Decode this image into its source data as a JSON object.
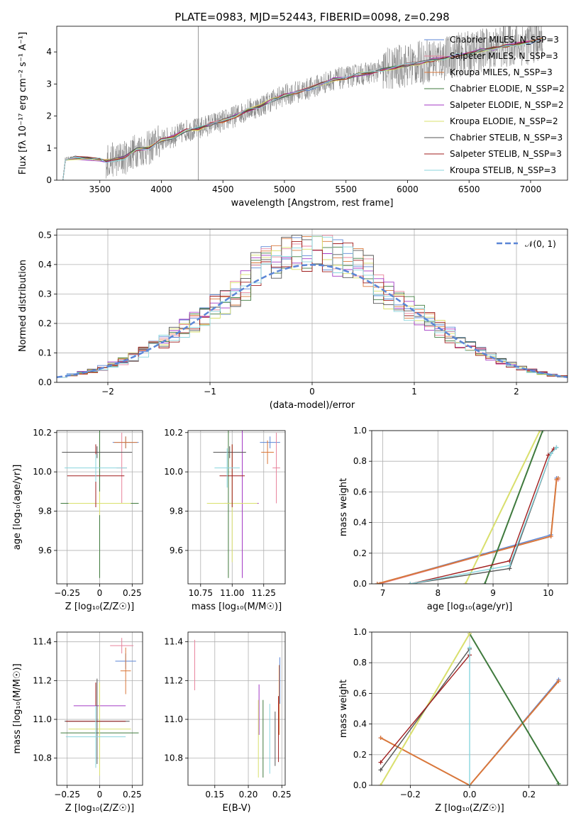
{
  "title": "PLATE=0983, MJD=52443, FIBERID=0098, z=0.298",
  "colors": [
    "#5b86d6",
    "#e8839c",
    "#d9773a",
    "#3f7a3d",
    "#a33ac5",
    "#d9e06c",
    "#555555",
    "#a01e1e",
    "#88d5de"
  ],
  "chart_data": [
    {
      "id": "spectrum",
      "type": "line",
      "xlabel": "wavelength [Angstrom, rest frame]",
      "ylabel": "Flux [fλ 10⁻¹⁷ erg cm⁻² s⁻¹ A⁻¹]",
      "xlim": [
        3150,
        7300
      ],
      "ylim": [
        0,
        4.8
      ],
      "xticks": [
        3500,
        4000,
        4500,
        5000,
        5500,
        6000,
        6500,
        7000
      ],
      "yticks": [
        0,
        1,
        2,
        3,
        4
      ],
      "data_x": [
        3200,
        3220,
        3300,
        3400,
        3500,
        3550,
        3700,
        3800,
        3900,
        4000,
        4100,
        4200,
        4300,
        4400,
        4500,
        4600,
        4700,
        4800,
        4900,
        5000,
        5100,
        5200,
        5300,
        5400,
        5500,
        5600,
        5700,
        5800,
        5900,
        6000,
        6100,
        6200,
        6300,
        6400,
        6500,
        6600,
        6700,
        6800,
        6900,
        7000,
        7100
      ],
      "model_y": [
        0,
        0.68,
        0.7,
        0.68,
        0.65,
        0.6,
        0.7,
        0.95,
        1.0,
        1.25,
        1.35,
        1.55,
        1.6,
        1.75,
        1.85,
        2.0,
        2.2,
        2.3,
        2.5,
        2.65,
        2.75,
        2.85,
        3.0,
        3.15,
        3.2,
        3.3,
        3.35,
        3.45,
        3.5,
        3.6,
        3.65,
        3.75,
        3.8,
        3.9,
        3.95,
        4.05,
        4.1,
        4.2,
        4.25,
        4.3,
        4.4
      ],
      "legend": [
        "Chabrier MILES, N_SSP=3",
        "Salpeter MILES, N_SSP=3",
        "Kroupa MILES, N_SSP=3",
        "Chabrier ELODIE, N_SSP=2",
        "Salpeter ELODIE, N_SSP=2",
        "Kroupa ELODIE, N_SSP=2",
        "Chabrier STELIB, N_SSP=3",
        "Salpeter STELIB, N_SSP=3",
        "Kroupa STELIB, N_SSP=3"
      ]
    },
    {
      "id": "residuals",
      "type": "line",
      "xlabel": "(data-model)/error",
      "ylabel": "Normed distribution",
      "xlim": [
        -2.5,
        2.5
      ],
      "ylim": [
        0,
        0.52
      ],
      "xticks": [
        -2,
        -1,
        0,
        1,
        2
      ],
      "yticks": [
        0,
        0.1,
        0.2,
        0.3,
        0.4,
        0.5
      ],
      "gaussian_label": "𝒩(0, 1)",
      "bin_width": 0.1
    },
    {
      "id": "age-vs-z",
      "type": "scatter",
      "xlabel": "Z [log₁₀(Z/Z☉)]",
      "ylabel": "age  [log₁₀(age/yr)]",
      "xlim": [
        -0.33,
        0.33
      ],
      "ylim": [
        9.43,
        10.21
      ],
      "xticks": [
        -0.25,
        0,
        0.25
      ],
      "yticks": [
        9.6,
        9.8,
        10.0,
        10.2
      ],
      "points": [
        {
          "x": 0.2,
          "y": 10.15,
          "xerr": 0.1,
          "yerr": 0.03
        },
        {
          "x": 0.17,
          "y": 10.02,
          "xerr": 0.04,
          "yerr": 0.18
        },
        {
          "x": 0.2,
          "y": 10.15,
          "xerr": 0.09,
          "yerr": 0.03
        },
        {
          "x": 0.0,
          "y": 9.84,
          "xerr": 0.3,
          "yerr": 0.38
        },
        {
          "x": 0.0,
          "y": 9.84,
          "xerr": 0.24,
          "yerr": 0.06
        },
        {
          "x": 0.0,
          "y": 9.84,
          "xerr": 0.24,
          "yerr": 0.06
        },
        {
          "x": -0.02,
          "y": 10.1,
          "xerr": 0.27,
          "yerr": 0.03
        },
        {
          "x": -0.03,
          "y": 9.98,
          "xerr": 0.22,
          "yerr": 0.16
        },
        {
          "x": -0.03,
          "y": 10.02,
          "xerr": 0.24,
          "yerr": 0.07
        }
      ]
    },
    {
      "id": "age-vs-mass",
      "type": "scatter",
      "xlabel": "mass [log₁₀(M/M☉)]",
      "ylabel": "",
      "xlim": [
        10.65,
        11.42
      ],
      "ylim": [
        9.43,
        10.21
      ],
      "xticks": [
        10.75,
        11.0,
        11.25
      ],
      "yticks": [
        9.6,
        9.8,
        10.0,
        10.2
      ],
      "xticklabels": [
        "10.75",
        "11.00",
        "11.25"
      ],
      "points": [
        {
          "x": 11.3,
          "y": 10.15,
          "xerr": 0.08,
          "yerr": 0.03
        },
        {
          "x": 11.35,
          "y": 10.02,
          "xerr": 0.03,
          "yerr": 0.18
        },
        {
          "x": 11.28,
          "y": 10.1,
          "xerr": 0.05,
          "yerr": 0.06
        },
        {
          "x": 10.97,
          "y": 9.84,
          "xerr": 0.03,
          "yerr": 0.38
        },
        {
          "x": 11.08,
          "y": 9.84,
          "xerr": 0.13,
          "yerr": 0.38
        },
        {
          "x": 11.0,
          "y": 9.84,
          "xerr": 0.2,
          "yerr": 0.3
        },
        {
          "x": 10.98,
          "y": 10.1,
          "xerr": 0.13,
          "yerr": 0.03
        },
        {
          "x": 11.0,
          "y": 9.98,
          "xerr": 0.1,
          "yerr": 0.16
        },
        {
          "x": 10.96,
          "y": 10.02,
          "xerr": 0.1,
          "yerr": 0.1
        }
      ]
    },
    {
      "id": "cumulative-age",
      "type": "line",
      "xlabel": "age  [log₁₀(age/yr)]",
      "ylabel": "mass weight",
      "xlim": [
        6.8,
        10.35
      ],
      "ylim": [
        0,
        1.0
      ],
      "xticks": [
        7,
        8,
        9,
        10
      ],
      "yticks": [
        0,
        0.2,
        0.4,
        0.6,
        0.8,
        1.0
      ],
      "series": [
        {
          "x": [
            6.9,
            10.05,
            10.15,
            10.18
          ],
          "y": [
            0,
            0.32,
            0.69,
            0.69
          ]
        },
        {
          "x": [
            6.95,
            10.05,
            10.15,
            10.18
          ],
          "y": [
            0,
            0.31,
            0.68,
            0.68
          ]
        },
        {
          "x": [
            6.9,
            10.05,
            10.15,
            10.18
          ],
          "y": [
            0,
            0.31,
            0.68,
            0.69
          ]
        },
        {
          "x": [
            8.85,
            9.9
          ],
          "y": [
            0,
            1.0
          ]
        },
        {
          "x": [
            8.5,
            9.85
          ],
          "y": [
            0,
            1.0
          ]
        },
        {
          "x": [
            8.5,
            9.85
          ],
          "y": [
            0,
            1.0
          ]
        },
        {
          "x": [
            7.5,
            9.3,
            10.05,
            10.15
          ],
          "y": [
            0,
            0.1,
            0.85,
            0.89
          ]
        },
        {
          "x": [
            7.5,
            9.3,
            10.0,
            10.1
          ],
          "y": [
            0,
            0.15,
            0.84,
            0.88
          ]
        },
        {
          "x": [
            7.5,
            9.3,
            10.05,
            10.15
          ],
          "y": [
            0,
            0.12,
            0.85,
            0.89
          ]
        }
      ]
    },
    {
      "id": "mass-vs-z",
      "type": "scatter",
      "xlabel": "Z [log₁₀(Z/Z☉)]",
      "ylabel": "mass [log₁₀(M/M☉)]",
      "xlim": [
        -0.33,
        0.33
      ],
      "ylim": [
        10.66,
        11.45
      ],
      "xticks": [
        -0.25,
        0,
        0.25
      ],
      "yticks": [
        10.8,
        11.0,
        11.2,
        11.4
      ],
      "points": [
        {
          "x": 0.2,
          "y": 11.3,
          "xerr": 0.08,
          "yerr": 0.04
        },
        {
          "x": 0.17,
          "y": 11.38,
          "xerr": 0.09,
          "yerr": 0.04
        },
        {
          "x": 0.2,
          "y": 11.25,
          "xerr": 0.04,
          "yerr": 0.12
        },
        {
          "x": 0.0,
          "y": 10.93,
          "xerr": 0.3,
          "yerr": 0.1
        },
        {
          "x": 0.0,
          "y": 11.07,
          "xerr": 0.2,
          "yerr": 0.1
        },
        {
          "x": 0.0,
          "y": 10.95,
          "xerr": 0.24,
          "yerr": 0.24
        },
        {
          "x": -0.02,
          "y": 10.99,
          "xerr": 0.25,
          "yerr": 0.22
        },
        {
          "x": -0.03,
          "y": 10.99,
          "xerr": 0.23,
          "yerr": 0.2
        },
        {
          "x": -0.03,
          "y": 10.91,
          "xerr": 0.23,
          "yerr": 0.16
        }
      ]
    },
    {
      "id": "mass-vs-ebv",
      "type": "scatter",
      "xlabel": "E(B-V)",
      "ylabel": "",
      "xlim": [
        0.11,
        0.255
      ],
      "ylim": [
        10.66,
        11.45
      ],
      "xticks": [
        0.15,
        0.2,
        0.25
      ],
      "yticks": [
        10.8,
        11.0,
        11.2,
        11.4
      ],
      "xticklabels": [
        "0.15",
        "0.20",
        "0.25"
      ],
      "points": [
        {
          "x": 0.247,
          "y": 11.2,
          "xerr": 0,
          "yerr": 0.12
        },
        {
          "x": 0.12,
          "y": 11.28,
          "xerr": 0,
          "yerr": 0.13
        },
        {
          "x": 0.246,
          "y": 11.1,
          "xerr": 0,
          "yerr": 0.18
        },
        {
          "x": 0.222,
          "y": 10.9,
          "xerr": 0,
          "yerr": 0.2
        },
        {
          "x": 0.216,
          "y": 11.05,
          "xerr": 0,
          "yerr": 0.13
        },
        {
          "x": 0.215,
          "y": 10.9,
          "xerr": 0,
          "yerr": 0.2
        },
        {
          "x": 0.24,
          "y": 10.9,
          "xerr": 0,
          "yerr": 0.14
        },
        {
          "x": 0.245,
          "y": 10.95,
          "xerr": 0,
          "yerr": 0.17
        },
        {
          "x": 0.232,
          "y": 10.9,
          "xerr": 0,
          "yerr": 0.18
        }
      ]
    },
    {
      "id": "cumulative-z",
      "type": "line",
      "xlabel": "Z [log₁₀(Z/Z☉)]",
      "ylabel": "mass weight",
      "xlim": [
        -0.33,
        0.33
      ],
      "ylim": [
        0,
        1.0
      ],
      "xticks": [
        -0.2,
        0,
        0.2
      ],
      "yticks": [
        0,
        0.2,
        0.4,
        0.6,
        0.8,
        1.0
      ],
      "xticklabels": [
        "−0.2",
        "0.0",
        "0.2"
      ],
      "series": [
        {
          "x": [
            -0.3,
            0,
            0.3
          ],
          "y": [
            0.31,
            0,
            0.69
          ]
        },
        {
          "x": [
            -0.3,
            0,
            0.3
          ],
          "y": [
            0.31,
            0,
            0.68
          ]
        },
        {
          "x": [
            -0.3,
            0,
            0.3
          ],
          "y": [
            0.31,
            0,
            0.68
          ]
        },
        {
          "x": [
            0,
            0.3
          ],
          "y": [
            0.99,
            0.01
          ]
        },
        {
          "x": [
            -0.3,
            0
          ],
          "y": [
            0,
            0.99
          ]
        },
        {
          "x": [
            -0.3,
            0
          ],
          "y": [
            0,
            0.99
          ]
        },
        {
          "x": [
            -0.3,
            0
          ],
          "y": [
            0.1,
            0.89
          ]
        },
        {
          "x": [
            -0.3,
            0
          ],
          "y": [
            0.15,
            0.85
          ]
        },
        {
          "x": [
            0,
            0
          ],
          "y": [
            0,
            0.9
          ]
        }
      ]
    }
  ]
}
